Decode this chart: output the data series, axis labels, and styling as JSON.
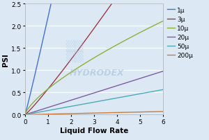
{
  "title": "",
  "xlabel": "Liquid Flow Rate",
  "ylabel": "PSI",
  "xlim": [
    0,
    6
  ],
  "ylim": [
    0,
    2.5
  ],
  "xticks": [
    0,
    1,
    2,
    3,
    4,
    5,
    6
  ],
  "yticks": [
    0,
    0.5,
    1.0,
    1.5,
    2.0,
    2.5
  ],
  "background_color": "#dce9f5",
  "plot_bg_color": "#dce9f5",
  "series": [
    {
      "label": "1μ",
      "color": "#4472c4",
      "exponent": 1.05,
      "coef": 2.2
    },
    {
      "label": "3μ",
      "color": "#9b3a4a",
      "exponent": 1.1,
      "coef": 0.58
    },
    {
      "label": "10μ",
      "color": "#8fae3a",
      "exponent": 0.72,
      "coef": 0.58
    },
    {
      "label": "20μ",
      "color": "#7c5ca3",
      "exponent": 1.0,
      "coef": 0.163
    },
    {
      "label": "50μ",
      "color": "#4aabb5",
      "exponent": 1.0,
      "coef": 0.094
    },
    {
      "label": "200μ",
      "color": "#c97a3a",
      "exponent": 1.0,
      "coef": 0.012
    }
  ],
  "watermark_text": "HYDRODEX",
  "watermark_color": "#a0bcd8",
  "watermark_alpha": 0.55,
  "watermark_fontsize": 9,
  "legend_fontsize": 6.5,
  "axis_label_fontsize": 7.5,
  "tick_fontsize": 6.5
}
